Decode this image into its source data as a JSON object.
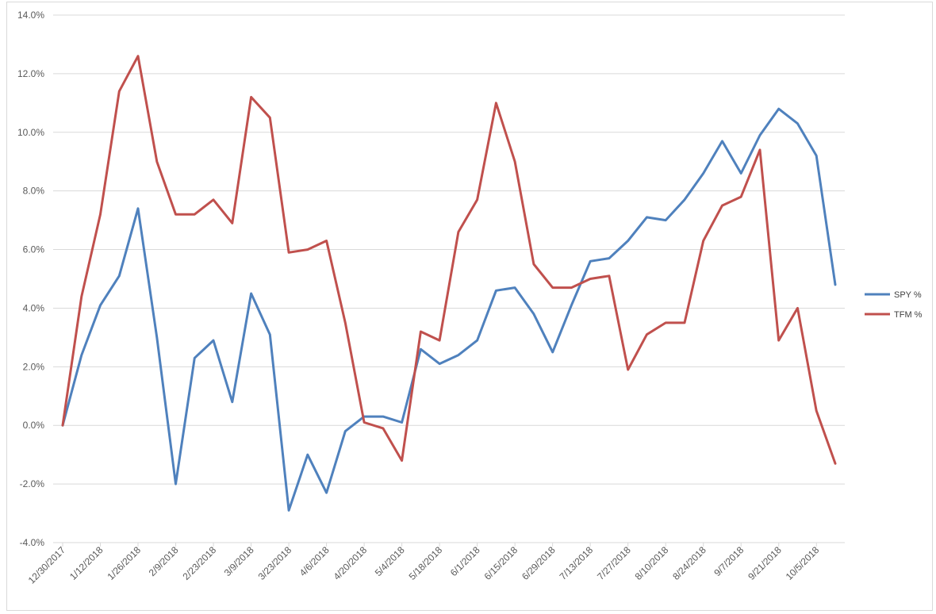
{
  "chart_data": {
    "type": "line",
    "title": "",
    "xlabel": "",
    "ylabel": "",
    "ylim": [
      -0.04,
      0.14
    ],
    "y_tick_values": [
      -0.04,
      -0.02,
      0.0,
      0.02,
      0.04,
      0.06,
      0.08,
      0.1,
      0.12,
      0.14
    ],
    "y_tick_labels": [
      "-4.0%",
      "-2.0%",
      "0.0%",
      "2.0%",
      "4.0%",
      "6.0%",
      "8.0%",
      "10.0%",
      "12.0%",
      "14.0%"
    ],
    "x_tick_labels": [
      "12/30/2017",
      "1/12/2018",
      "1/26/2018",
      "2/9/2018",
      "2/23/2018",
      "3/9/2018",
      "3/23/2018",
      "4/6/2018",
      "4/20/2018",
      "5/4/2018",
      "5/18/2018",
      "6/1/2018",
      "6/15/2018",
      "6/29/2018",
      "7/13/2018",
      "7/27/2018",
      "8/10/2018",
      "8/24/2018",
      "9/7/2018",
      "9/21/2018",
      "10/5/2018"
    ],
    "x": [
      "12/30/2017",
      "1/5/2018",
      "1/12/2018",
      "1/19/2018",
      "1/26/2018",
      "2/2/2018",
      "2/9/2018",
      "2/16/2018",
      "2/23/2018",
      "3/2/2018",
      "3/9/2018",
      "3/16/2018",
      "3/23/2018",
      "3/30/2018",
      "4/6/2018",
      "4/13/2018",
      "4/20/2018",
      "4/27/2018",
      "5/4/2018",
      "5/11/2018",
      "5/18/2018",
      "5/25/2018",
      "6/1/2018",
      "6/8/2018",
      "6/15/2018",
      "6/22/2018",
      "6/29/2018",
      "7/6/2018",
      "7/13/2018",
      "7/20/2018",
      "7/27/2018",
      "8/3/2018",
      "8/10/2018",
      "8/17/2018",
      "8/24/2018",
      "8/31/2018",
      "9/7/2018",
      "9/14/2018",
      "9/21/2018",
      "9/28/2018",
      "10/5/2018",
      "10/12/2018"
    ],
    "series": [
      {
        "name": "SPY %",
        "color": "#4f81bd",
        "values": [
          0.0,
          0.024,
          0.041,
          0.051,
          0.074,
          0.03,
          -0.02,
          0.023,
          0.029,
          0.008,
          0.045,
          0.031,
          -0.029,
          -0.01,
          -0.023,
          -0.002,
          0.003,
          0.003,
          0.001,
          0.026,
          0.021,
          0.024,
          0.029,
          0.046,
          0.047,
          0.038,
          0.025,
          0.041,
          0.056,
          0.057,
          0.063,
          0.071,
          0.07,
          0.077,
          0.086,
          0.097,
          0.086,
          0.099,
          0.108,
          0.103,
          0.092,
          0.048
        ]
      },
      {
        "name": "TFM %",
        "color": "#c0504d",
        "values": [
          0.0,
          0.044,
          0.072,
          0.114,
          0.126,
          0.09,
          0.072,
          0.072,
          0.077,
          0.069,
          0.112,
          0.105,
          0.059,
          0.06,
          0.063,
          0.035,
          0.001,
          -0.001,
          -0.012,
          0.032,
          0.029,
          0.066,
          0.077,
          0.11,
          0.09,
          0.055,
          0.047,
          0.047,
          0.05,
          0.051,
          0.019,
          0.031,
          0.035,
          0.035,
          0.063,
          0.075,
          0.078,
          0.094,
          0.029,
          0.04,
          0.005,
          -0.013
        ]
      }
    ],
    "legend": {
      "position": "right"
    },
    "grid": true
  }
}
